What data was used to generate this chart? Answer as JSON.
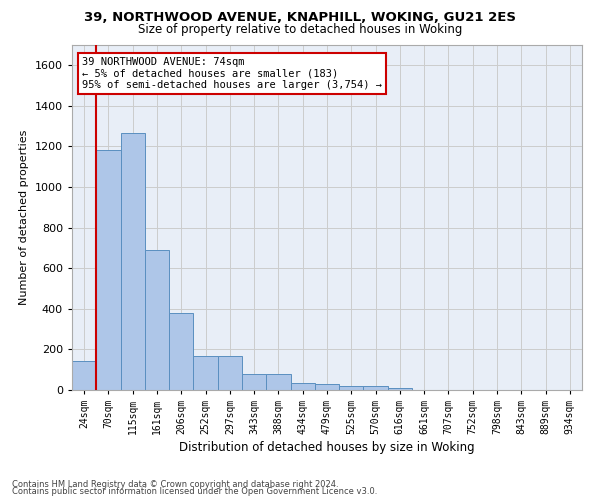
{
  "title1": "39, NORTHWOOD AVENUE, KNAPHILL, WOKING, GU21 2ES",
  "title2": "Size of property relative to detached houses in Woking",
  "xlabel": "Distribution of detached houses by size in Woking",
  "ylabel": "Number of detached properties",
  "categories": [
    "24sqm",
    "70sqm",
    "115sqm",
    "161sqm",
    "206sqm",
    "252sqm",
    "297sqm",
    "343sqm",
    "388sqm",
    "434sqm",
    "479sqm",
    "525sqm",
    "570sqm",
    "616sqm",
    "661sqm",
    "707sqm",
    "752sqm",
    "798sqm",
    "843sqm",
    "889sqm",
    "934sqm"
  ],
  "values": [
    145,
    1185,
    1265,
    690,
    380,
    170,
    170,
    80,
    80,
    35,
    30,
    22,
    22,
    12,
    0,
    0,
    0,
    0,
    0,
    0,
    0
  ],
  "bar_color": "#aec6e8",
  "bar_edge_color": "#5a8fc0",
  "vline_x": 0.5,
  "annotation_title": "39 NORTHWOOD AVENUE: 74sqm",
  "annotation_line1": "← 5% of detached houses are smaller (183)",
  "annotation_line2": "95% of semi-detached houses are larger (3,754) →",
  "annotation_box_color": "#ffffff",
  "annotation_box_edge": "#cc0000",
  "vline_color": "#cc0000",
  "ylim": [
    0,
    1700
  ],
  "yticks": [
    0,
    200,
    400,
    600,
    800,
    1000,
    1200,
    1400,
    1600
  ],
  "grid_color": "#cccccc",
  "bg_color": "#e8eef7",
  "footer1": "Contains HM Land Registry data © Crown copyright and database right 2024.",
  "footer2": "Contains public sector information licensed under the Open Government Licence v3.0."
}
